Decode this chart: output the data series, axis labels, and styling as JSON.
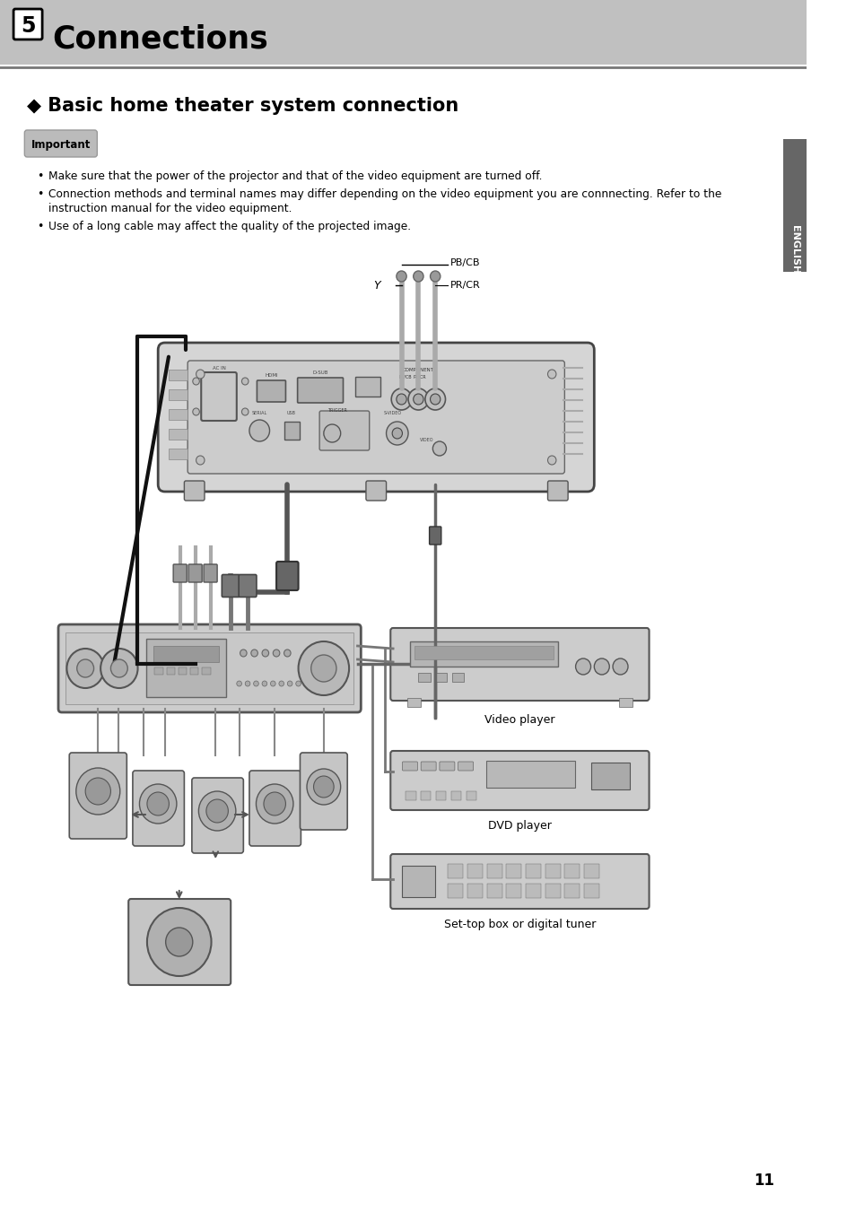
{
  "page_bg": "#ffffff",
  "header_bg": "#c0c0c0",
  "header_text": "Connections",
  "header_num": "5",
  "section_title": "◆ Basic home theater system connection",
  "important_label": "Important",
  "bullet1": "Make sure that the power of the projector and that of the video equipment are turned off.",
  "bullet2": "Connection methods and terminal names may differ depending on the video equipment you are connnecting. Refer to the",
  "bullet2b": "instruction manual for the video equipment.",
  "bullet3": "Use of a long cable may affect the quality of the projected image.",
  "english_sidebar": "ENGLISH",
  "page_number": "11",
  "label_y": "Y",
  "label_pb_cb": "PB/CB",
  "label_pr_cr": "PR/CR",
  "label_video_player": "Video player",
  "label_dvd_player": "DVD player",
  "label_settop": "Set-top box or digital tuner",
  "sidebar_color": "#666666",
  "line_color": "#888888",
  "device_color": "#d0d0d0",
  "device_edge": "#555555",
  "cable_dark": "#222222",
  "cable_gray": "#999999"
}
